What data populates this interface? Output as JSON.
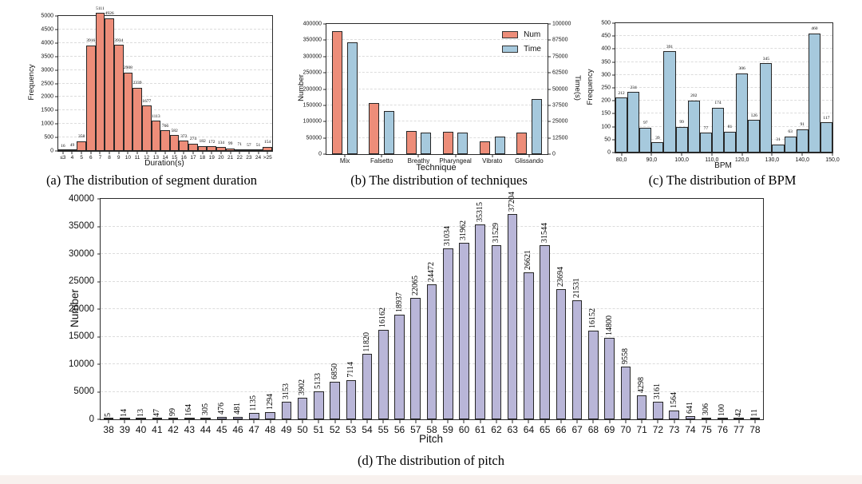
{
  "colors": {
    "salmon": "#ED8D79",
    "blue": "#A6C9DD",
    "lavender": "#B9B6D8",
    "edge": "#262626",
    "grid": "#DCDCDC"
  },
  "captions": {
    "a": "(a) The distribution of segment duration",
    "b": "(b) The distribution of techniques",
    "c": "(c) The distribution of BPM",
    "d": "(d) The distribution of pitch"
  },
  "chart_data": [
    {
      "id": "segment-duration",
      "type": "bar",
      "bars_touch": true,
      "xlabel": "Duration(s)",
      "ylabel": "Frequency",
      "ylim": [
        0,
        5000
      ],
      "yticks": [
        0,
        500,
        1000,
        1500,
        2000,
        2500,
        3000,
        3500,
        4000,
        4500,
        5000
      ],
      "grid": "horizontal-dashed",
      "bar_color": "salmon",
      "categories": [
        "≤3",
        "4",
        "5",
        "6",
        "7",
        "8",
        "9",
        "10",
        "11",
        "12",
        "13",
        "14",
        "15",
        "16",
        "17",
        "18",
        "19",
        "20",
        "21",
        "22",
        "23",
        "24",
        ">25"
      ],
      "values": [
        16,
        49,
        358,
        3916,
        5111,
        4926,
        3934,
        2908,
        2339,
        1677,
        1113,
        766,
        582,
        372,
        274,
        182,
        172,
        134,
        99,
        71,
        57,
        51,
        154
      ],
      "value_labels_shown": true
    },
    {
      "id": "techniques",
      "type": "bar",
      "grouped": true,
      "xlabel": "Technique",
      "ylabel_left": "Number",
      "ylabel_right": "Time(s)",
      "ylim_left": [
        0,
        400000
      ],
      "ylim_right": [
        0,
        100000
      ],
      "yticks_left": [
        0,
        50000,
        100000,
        150000,
        200000,
        250000,
        300000,
        350000,
        400000
      ],
      "yticks_right": [
        0,
        12500,
        25000,
        37500,
        50000,
        62500,
        75000,
        87500,
        100000
      ],
      "grid": "horizontal-dashed",
      "legend_position": "upper-right",
      "categories": [
        "Mix",
        "Falsetto",
        "Breathy",
        "Pharyngeal",
        "Vibrato",
        "Glissando"
      ],
      "series": [
        {
          "name": "Num",
          "axis": "left",
          "color": "salmon",
          "values": [
            377000,
            156000,
            70000,
            69000,
            40000,
            67000
          ]
        },
        {
          "name": "Time",
          "axis": "right",
          "color": "blue",
          "values": [
            86000,
            33200,
            16800,
            16600,
            13500,
            42500
          ]
        }
      ],
      "value_labels_shown": false
    },
    {
      "id": "bpm",
      "type": "bar",
      "bars_touch": true,
      "xlabel": "BPM",
      "ylabel": "Frequency",
      "ylim": [
        0,
        500
      ],
      "yticks": [
        0,
        50,
        100,
        150,
        200,
        250,
        300,
        350,
        400,
        450,
        500
      ],
      "grid": "horizontal-dashed",
      "bar_color": "blue",
      "x_range": [
        78,
        150
      ],
      "bin_width": 4,
      "xtick_labels": [
        "80,0",
        "90,0",
        "100,0",
        "110,0",
        "120,0",
        "130,0",
        "140,0",
        "150,0"
      ],
      "xtick_values": [
        80,
        90,
        100,
        110,
        120,
        130,
        140,
        150
      ],
      "values": [
        212,
        234,
        97,
        39,
        391,
        99,
        202,
        77,
        174,
        81,
        306,
        126,
        345,
        31,
        63,
        91,
        460,
        117
      ],
      "value_labels_shown": true
    },
    {
      "id": "pitch",
      "type": "bar",
      "bars_touch": false,
      "xlabel": "Pitch",
      "ylabel": "Number",
      "ylim": [
        0,
        40000
      ],
      "yticks": [
        0,
        5000,
        10000,
        15000,
        20000,
        25000,
        30000,
        35000,
        40000
      ],
      "grid": "horizontal-dashed",
      "bar_color": "lavender",
      "categories": [
        "38",
        "39",
        "40",
        "41",
        "42",
        "43",
        "44",
        "45",
        "46",
        "47",
        "48",
        "49",
        "50",
        "51",
        "52",
        "53",
        "54",
        "55",
        "56",
        "57",
        "58",
        "59",
        "60",
        "61",
        "62",
        "63",
        "64",
        "65",
        "66",
        "67",
        "68",
        "69",
        "70",
        "71",
        "72",
        "73",
        "74",
        "75",
        "76",
        "77",
        "78"
      ],
      "values": [
        5,
        14,
        13,
        47,
        99,
        164,
        305,
        476,
        481,
        1135,
        1294,
        3153,
        3902,
        5133,
        6850,
        7114,
        11820,
        16162,
        18937,
        22065,
        24472,
        31034,
        31962,
        35315,
        31529,
        37204,
        26621,
        31544,
        23694,
        21531,
        16152,
        14800,
        9558,
        4298,
        3161,
        1564,
        641,
        306,
        100,
        42,
        11
      ],
      "value_labels_shown": true,
      "value_labels_rotated": true
    }
  ]
}
